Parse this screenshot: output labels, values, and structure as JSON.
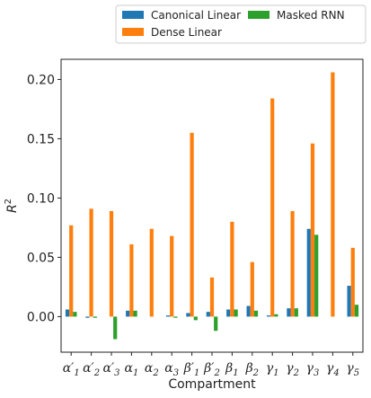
{
  "chart_data": {
    "type": "bar",
    "xlabel": "Compartment",
    "ylabel_main": "R",
    "ylabel_sup": "2",
    "ylim": [
      -0.03,
      0.217
    ],
    "yticks": [
      0.0,
      0.05,
      0.1,
      0.15,
      0.2
    ],
    "ytick_labels": [
      "0.00",
      "0.05",
      "0.10",
      "0.15",
      "0.20"
    ],
    "grid": false,
    "legend_position": "top",
    "categories": [
      {
        "base": "α",
        "prime": "′",
        "sub": "1"
      },
      {
        "base": "α",
        "prime": "′",
        "sub": "2"
      },
      {
        "base": "α",
        "prime": "′",
        "sub": "3"
      },
      {
        "base": "α",
        "prime": "",
        "sub": "1"
      },
      {
        "base": "α",
        "prime": "",
        "sub": "2"
      },
      {
        "base": "α",
        "prime": "",
        "sub": "3"
      },
      {
        "base": "β",
        "prime": "′",
        "sub": "1"
      },
      {
        "base": "β",
        "prime": "′",
        "sub": "2"
      },
      {
        "base": "β",
        "prime": "",
        "sub": "1"
      },
      {
        "base": "β",
        "prime": "",
        "sub": "2"
      },
      {
        "base": "γ",
        "prime": "",
        "sub": "1"
      },
      {
        "base": "γ",
        "prime": "",
        "sub": "2"
      },
      {
        "base": "γ",
        "prime": "",
        "sub": "3"
      },
      {
        "base": "γ",
        "prime": "",
        "sub": "4"
      },
      {
        "base": "γ",
        "prime": "",
        "sub": "5"
      }
    ],
    "series": [
      {
        "name": "Canonical Linear",
        "color": "#1f77b4",
        "values": [
          0.006,
          -0.001,
          0.0,
          0.005,
          0.0,
          0.001,
          0.003,
          0.004,
          0.006,
          0.009,
          0.001,
          0.007,
          0.074,
          0.0,
          0.026
        ]
      },
      {
        "name": "Dense Linear",
        "color": "#ff7f0e",
        "values": [
          0.077,
          0.091,
          0.089,
          0.061,
          0.074,
          0.068,
          0.155,
          0.033,
          0.08,
          0.046,
          0.184,
          0.089,
          0.146,
          0.206,
          0.058
        ]
      },
      {
        "name": "Masked RNN",
        "color": "#2ca02c",
        "values": [
          0.004,
          -0.001,
          -0.019,
          0.005,
          0.0,
          -0.001,
          -0.003,
          -0.012,
          0.006,
          0.005,
          0.002,
          0.007,
          0.069,
          0.0,
          0.01
        ]
      }
    ]
  }
}
